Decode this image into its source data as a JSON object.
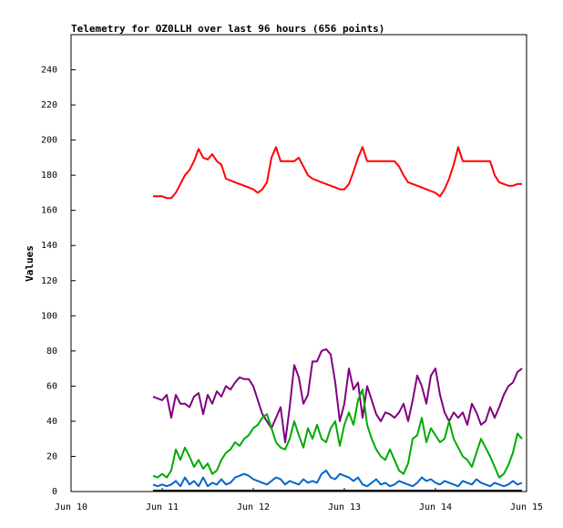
{
  "chart_data": {
    "type": "line",
    "title": "Telemetry for OZ0LLH over last 96 hours (656 points)",
    "xlabel": "",
    "ylabel": "Values",
    "x_ticks": [
      "Jun 10",
      "Jun 11",
      "Jun 12",
      "Jun 13",
      "Jun 14",
      "Jun 15"
    ],
    "x_range_days": [
      0,
      5
    ],
    "ylim": [
      0,
      260
    ],
    "y_ticks": [
      0,
      20,
      40,
      60,
      80,
      100,
      120,
      140,
      160,
      180,
      200,
      220,
      240
    ],
    "grid": false,
    "series": [
      {
        "color": "#ff0000",
        "x": [
          0.9,
          0.95,
          1.0,
          1.05,
          1.1,
          1.15,
          1.2,
          1.25,
          1.3,
          1.35,
          1.4,
          1.45,
          1.5,
          1.55,
          1.6,
          1.65,
          1.7,
          1.75,
          1.8,
          1.85,
          1.9,
          1.95,
          2.0,
          2.05,
          2.1,
          2.15,
          2.2,
          2.25,
          2.3,
          2.35,
          2.4,
          2.45,
          2.5,
          2.55,
          2.6,
          2.65,
          2.7,
          2.75,
          2.8,
          2.85,
          2.9,
          2.95,
          3.0,
          3.05,
          3.1,
          3.15,
          3.2,
          3.25,
          3.3,
          3.35,
          3.4,
          3.45,
          3.5,
          3.55,
          3.6,
          3.65,
          3.7,
          3.75,
          3.8,
          3.85,
          3.9,
          3.95,
          4.0,
          4.05,
          4.1,
          4.15,
          4.2,
          4.25,
          4.3,
          4.35,
          4.4,
          4.45,
          4.5,
          4.55,
          4.6,
          4.65,
          4.7,
          4.75,
          4.8,
          4.85,
          4.9,
          4.95
        ],
        "y": [
          168,
          168,
          168,
          167,
          167,
          170,
          175,
          180,
          183,
          188,
          195,
          190,
          189,
          192,
          188,
          186,
          178,
          177,
          176,
          175,
          174,
          173,
          172,
          170,
          172,
          176,
          190,
          196,
          188,
          188,
          188,
          188,
          190,
          185,
          180,
          178,
          177,
          176,
          175,
          174,
          173,
          172,
          172,
          175,
          182,
          190,
          196,
          188,
          188,
          188,
          188,
          188,
          188,
          188,
          185,
          180,
          176,
          175,
          174,
          173,
          172,
          171,
          170,
          168,
          172,
          178,
          186,
          196,
          188,
          188,
          188,
          188,
          188,
          188,
          188,
          180,
          176,
          175,
          174,
          174,
          175,
          175
        ]
      },
      {
        "color": "#800080",
        "x": [
          0.9,
          0.95,
          1.0,
          1.05,
          1.1,
          1.15,
          1.2,
          1.25,
          1.3,
          1.35,
          1.4,
          1.45,
          1.5,
          1.55,
          1.6,
          1.65,
          1.7,
          1.75,
          1.8,
          1.85,
          1.9,
          1.95,
          2.0,
          2.05,
          2.1,
          2.15,
          2.2,
          2.25,
          2.3,
          2.35,
          2.4,
          2.45,
          2.5,
          2.55,
          2.6,
          2.65,
          2.7,
          2.75,
          2.8,
          2.85,
          2.9,
          2.95,
          3.0,
          3.05,
          3.1,
          3.15,
          3.2,
          3.25,
          3.3,
          3.35,
          3.4,
          3.45,
          3.5,
          3.55,
          3.6,
          3.65,
          3.7,
          3.75,
          3.8,
          3.85,
          3.9,
          3.95,
          4.0,
          4.05,
          4.1,
          4.15,
          4.2,
          4.25,
          4.3,
          4.35,
          4.4,
          4.45,
          4.5,
          4.55,
          4.6,
          4.65,
          4.7,
          4.75,
          4.8,
          4.85,
          4.9,
          4.95
        ],
        "y": [
          54,
          53,
          52,
          55,
          42,
          55,
          50,
          50,
          48,
          54,
          56,
          44,
          55,
          50,
          57,
          54,
          60,
          58,
          62,
          65,
          64,
          64,
          60,
          52,
          44,
          40,
          36,
          42,
          48,
          28,
          48,
          72,
          65,
          50,
          55,
          74,
          74,
          80,
          81,
          78,
          62,
          40,
          50,
          70,
          58,
          62,
          42,
          60,
          52,
          44,
          40,
          45,
          44,
          42,
          45,
          50,
          40,
          52,
          66,
          60,
          50,
          66,
          70,
          55,
          45,
          40,
          45,
          42,
          45,
          38,
          50,
          45,
          38,
          40,
          48,
          42,
          48,
          55,
          60,
          62,
          68,
          70
        ]
      },
      {
        "color": "#00aa00",
        "x": [
          0.9,
          0.95,
          1.0,
          1.05,
          1.1,
          1.15,
          1.2,
          1.25,
          1.3,
          1.35,
          1.4,
          1.45,
          1.5,
          1.55,
          1.6,
          1.65,
          1.7,
          1.75,
          1.8,
          1.85,
          1.9,
          1.95,
          2.0,
          2.05,
          2.1,
          2.15,
          2.2,
          2.25,
          2.3,
          2.35,
          2.4,
          2.45,
          2.5,
          2.55,
          2.6,
          2.65,
          2.7,
          2.75,
          2.8,
          2.85,
          2.9,
          2.95,
          3.0,
          3.05,
          3.1,
          3.15,
          3.2,
          3.25,
          3.3,
          3.35,
          3.4,
          3.45,
          3.5,
          3.55,
          3.6,
          3.65,
          3.7,
          3.75,
          3.8,
          3.85,
          3.9,
          3.95,
          4.0,
          4.05,
          4.1,
          4.15,
          4.2,
          4.25,
          4.3,
          4.35,
          4.4,
          4.45,
          4.5,
          4.55,
          4.6,
          4.65,
          4.7,
          4.75,
          4.8,
          4.85,
          4.9,
          4.95
        ],
        "y": [
          9,
          8,
          10,
          8,
          12,
          24,
          18,
          25,
          20,
          14,
          18,
          13,
          16,
          10,
          12,
          18,
          22,
          24,
          28,
          26,
          30,
          32,
          36,
          38,
          42,
          44,
          36,
          28,
          25,
          24,
          30,
          40,
          32,
          25,
          36,
          30,
          38,
          30,
          28,
          36,
          40,
          26,
          38,
          45,
          38,
          52,
          58,
          38,
          30,
          24,
          20,
          18,
          24,
          18,
          12,
          10,
          16,
          30,
          32,
          42,
          28,
          36,
          32,
          28,
          30,
          40,
          30,
          25,
          20,
          18,
          14,
          22,
          30,
          25,
          20,
          14,
          8,
          10,
          15,
          22,
          33,
          30
        ]
      },
      {
        "color": "#0066cc",
        "x": [
          0.9,
          0.95,
          1.0,
          1.05,
          1.1,
          1.15,
          1.2,
          1.25,
          1.3,
          1.35,
          1.4,
          1.45,
          1.5,
          1.55,
          1.6,
          1.65,
          1.7,
          1.75,
          1.8,
          1.85,
          1.9,
          1.95,
          2.0,
          2.05,
          2.1,
          2.15,
          2.2,
          2.25,
          2.3,
          2.35,
          2.4,
          2.45,
          2.5,
          2.55,
          2.6,
          2.65,
          2.7,
          2.75,
          2.8,
          2.85,
          2.9,
          2.95,
          3.0,
          3.05,
          3.1,
          3.15,
          3.2,
          3.25,
          3.3,
          3.35,
          3.4,
          3.45,
          3.5,
          3.55,
          3.6,
          3.65,
          3.7,
          3.75,
          3.8,
          3.85,
          3.9,
          3.95,
          4.0,
          4.05,
          4.1,
          4.15,
          4.2,
          4.25,
          4.3,
          4.35,
          4.4,
          4.45,
          4.5,
          4.55,
          4.6,
          4.65,
          4.7,
          4.75,
          4.8,
          4.85,
          4.9,
          4.95
        ],
        "y": [
          4,
          3,
          4,
          3,
          4,
          6,
          3,
          8,
          4,
          6,
          3,
          8,
          3,
          5,
          4,
          7,
          4,
          5,
          8,
          9,
          10,
          9,
          7,
          6,
          5,
          4,
          6,
          8,
          7,
          4,
          6,
          5,
          4,
          7,
          5,
          6,
          5,
          10,
          12,
          8,
          7,
          10,
          9,
          8,
          6,
          8,
          4,
          3,
          5,
          7,
          4,
          5,
          3,
          4,
          6,
          5,
          4,
          3,
          5,
          8,
          6,
          7,
          5,
          4,
          6,
          5,
          4,
          3,
          6,
          5,
          4,
          7,
          5,
          4,
          3,
          5,
          4,
          3,
          4,
          6,
          4,
          5
        ]
      },
      {
        "color": "#000000",
        "x": [
          0.9,
          4.95
        ],
        "y": [
          0.5,
          0.5
        ]
      }
    ]
  }
}
